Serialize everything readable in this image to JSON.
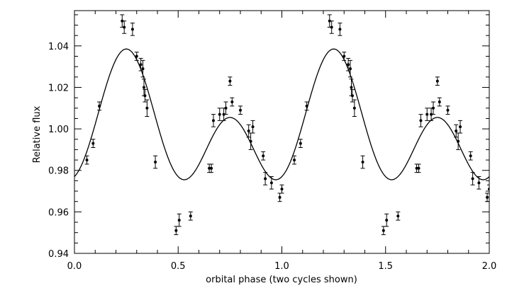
{
  "chart_data": {
    "type": "scatter",
    "xlabel": "orbital phase (two cycles shown)",
    "ylabel": "Relative flux",
    "xlim": [
      0.0,
      2.0
    ],
    "ylim": [
      0.94,
      1.057
    ],
    "x_ticks": [
      0.0,
      0.5,
      1.0,
      1.5,
      2.0
    ],
    "x_tick_labels": [
      "0.0",
      "0.5",
      "1.0",
      "1.5",
      "2.0"
    ],
    "y_ticks": [
      0.94,
      0.96,
      0.98,
      1.0,
      1.02,
      1.04
    ],
    "y_tick_labels": [
      "0.94",
      "0.96",
      "0.98",
      "1.00",
      "1.02",
      "1.04"
    ],
    "grid": false,
    "series": [
      {
        "kind": "points_with_errorbars",
        "x": [
          0.06,
          0.09,
          0.12,
          0.23,
          0.24,
          0.28,
          0.3,
          0.32,
          0.33,
          0.335,
          0.34,
          0.35,
          0.39,
          0.49,
          0.505,
          0.56,
          0.65,
          0.66,
          0.67,
          0.7,
          0.72,
          0.73,
          0.75,
          0.76,
          0.8,
          0.84,
          0.85,
          0.86,
          0.91,
          0.92,
          0.95,
          0.99,
          1.0
        ],
        "y": [
          0.985,
          0.993,
          1.011,
          1.052,
          1.049,
          1.048,
          1.035,
          1.031,
          1.029,
          1.02,
          1.016,
          1.01,
          0.984,
          0.951,
          0.956,
          0.958,
          0.981,
          0.981,
          1.004,
          1.007,
          1.007,
          1.01,
          1.023,
          1.013,
          1.009,
          0.999,
          0.994,
          1.001,
          0.987,
          0.976,
          0.974,
          0.967,
          0.971
        ],
        "err": [
          0.002,
          0.002,
          0.002,
          0.003,
          0.003,
          0.003,
          0.002,
          0.003,
          0.004,
          0.004,
          0.003,
          0.004,
          0.003,
          0.002,
          0.003,
          0.002,
          0.002,
          0.002,
          0.003,
          0.003,
          0.003,
          0.003,
          0.002,
          0.002,
          0.002,
          0.003,
          0.004,
          0.003,
          0.002,
          0.003,
          0.003,
          0.002,
          0.002
        ]
      },
      {
        "kind": "model_curve",
        "mean": 0.9995,
        "cos2_amp": 0.0225,
        "cos1_amp": 0.0165
      }
    ]
  }
}
